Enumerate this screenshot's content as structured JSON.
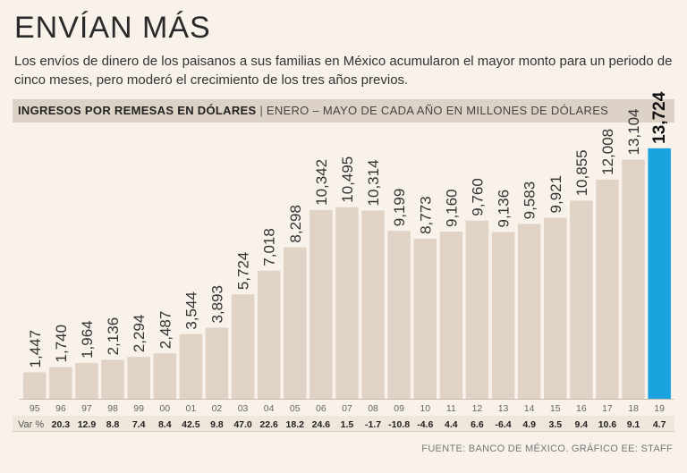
{
  "title": "ENVÍAN MÁS",
  "subtitle": "Los envíos de dinero de los paisanos a sus familias en México acumularon el mayor monto para un periodo de cinco meses, pero moderó el crecimiento de los tres años previos.",
  "header": {
    "main": "INGRESOS POR REMESAS EN DÓLARES",
    "separator": "|",
    "sub": "ENERO – MAYO DE CADA AÑO EN MILLONES DE DÓLARES"
  },
  "source": "FUENTE: BANCO DE MÉXICO. GRÁFICO EE: STAFF",
  "colors": {
    "bar": "#e0d3c5",
    "highlight": "#1aa3de",
    "background": "#f8f2ea"
  },
  "chart_data": {
    "type": "bar",
    "categories": [
      "95",
      "96",
      "97",
      "98",
      "99",
      "00",
      "01",
      "02",
      "03",
      "04",
      "05",
      "06",
      "07",
      "08",
      "09",
      "10",
      "11",
      "12",
      "13",
      "14",
      "15",
      "16",
      "17",
      "18",
      "19"
    ],
    "values": [
      1447,
      1740,
      1964,
      2136,
      2294,
      2487,
      3544,
      3893,
      5724,
      7018,
      8298,
      10342,
      10495,
      10314,
      9199,
      8773,
      9160,
      9760,
      9136,
      9583,
      9921,
      10855,
      12008,
      13104,
      13724
    ],
    "value_labels": [
      "1,447",
      "1,740",
      "1,964",
      "2,136",
      "2,294",
      "2,487",
      "3,544",
      "3,893",
      "5,724",
      "7,018",
      "8,298",
      "10,342",
      "10,495",
      "10,314",
      "9,199",
      "8,773",
      "9,160",
      "9,760",
      "9,136",
      "9,583",
      "9,921",
      "10,855",
      "12,008",
      "13,104",
      "13,724"
    ],
    "highlight_index": 24,
    "var_label": "Var %",
    "var_values": [
      "",
      "20.3",
      "12.9",
      "8.8",
      "7.4",
      "8.4",
      "42.5",
      "9.8",
      "47.0",
      "22.6",
      "18.2",
      "24.6",
      "1.5",
      "-1.7",
      "-10.8",
      "-4.6",
      "4.4",
      "6.6",
      "-6.4",
      "4.9",
      "3.5",
      "9.4",
      "10.6",
      "9.1",
      "4.7"
    ],
    "ylim": [
      0,
      14500
    ],
    "grid": false
  }
}
